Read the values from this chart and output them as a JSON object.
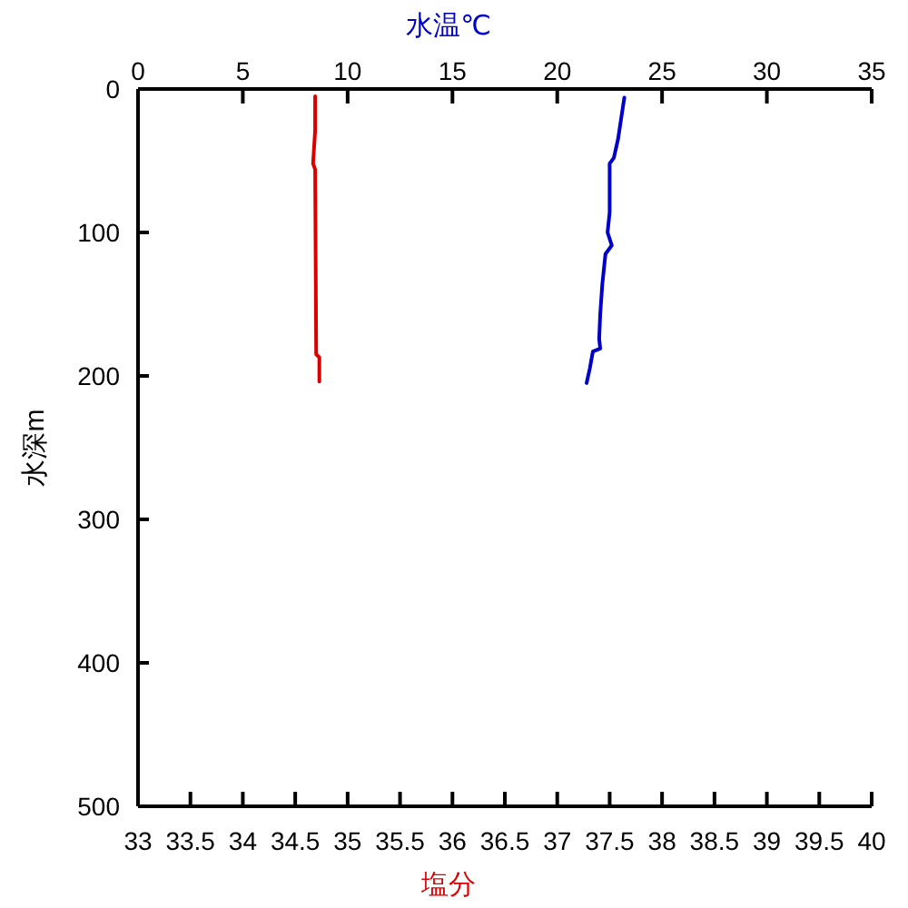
{
  "chart_data": {
    "type": "line",
    "xlabel": "塩分",
    "x2label": "水温℃",
    "ylabel": "水深m",
    "xlim": [
      33,
      40
    ],
    "xticks": [
      33,
      33.5,
      34,
      34.5,
      35,
      35.5,
      36,
      36.5,
      37,
      37.5,
      38,
      38.5,
      39,
      39.5,
      40
    ],
    "x2lim": [
      0,
      35
    ],
    "x2ticks": [
      0,
      5,
      10,
      15,
      20,
      25,
      30,
      35
    ],
    "ylim": [
      500,
      0
    ],
    "yticks": [
      0,
      100,
      200,
      300,
      400,
      500
    ],
    "series": [
      {
        "color": "#dd0000",
        "x": [
          34.69,
          34.69,
          34.67,
          34.69,
          34.7,
          34.73,
          34.73
        ],
        "values": [
          5,
          29,
          52,
          56,
          185,
          187,
          204
        ]
      },
      {
        "color": "#0000cc",
        "axis": "x2",
        "x": [
          23.2,
          22.9,
          22.7,
          22.5,
          22.5,
          22.4,
          22.6,
          22.3,
          22.15,
          22.05,
          22.0,
          22.05,
          21.7,
          21.55,
          21.4
        ],
        "values": [
          6,
          35,
          48,
          52,
          86,
          100,
          109,
          115,
          136,
          157,
          174,
          181,
          183,
          195,
          205
        ]
      }
    ]
  }
}
